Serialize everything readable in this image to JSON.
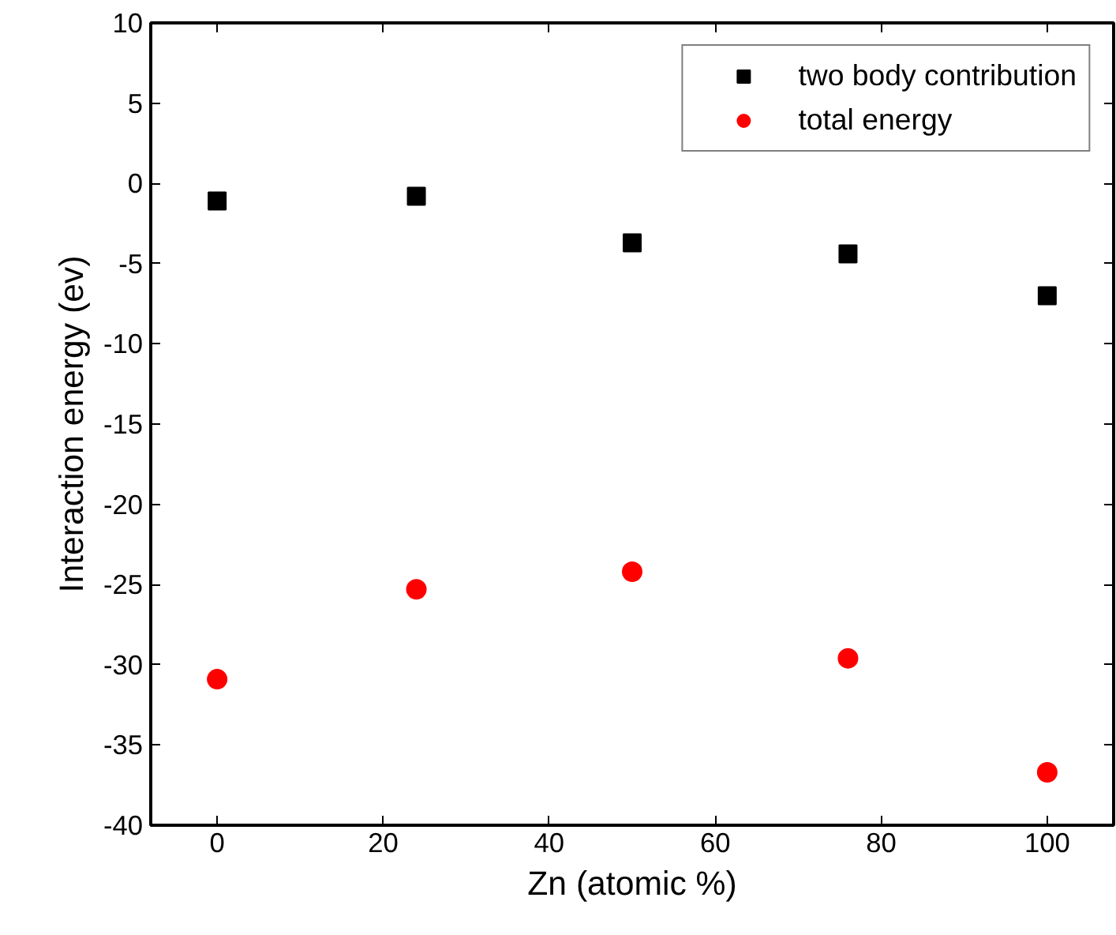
{
  "chart_data": {
    "type": "scatter",
    "xlabel": "Zn (atomic %)",
    "ylabel": "Interaction energy (ev)",
    "x": [
      0,
      24,
      50,
      76,
      100
    ],
    "series": [
      {
        "name": "two body contribution",
        "color": "#000000",
        "marker": "square",
        "values": [
          -1.1,
          -0.8,
          -3.7,
          -4.4,
          -7.0
        ]
      },
      {
        "name": "total energy",
        "color": "#ff0000",
        "marker": "circle",
        "values": [
          -30.9,
          -25.3,
          -24.2,
          -29.6,
          -36.7
        ]
      }
    ],
    "xlim": [
      -8,
      108
    ],
    "ylim": [
      -40,
      10
    ],
    "xticks": [
      0,
      20,
      40,
      60,
      80,
      100
    ],
    "yticks": [
      -40,
      -35,
      -30,
      -25,
      -20,
      -15,
      -10,
      -5,
      0,
      5,
      10
    ],
    "grid": false,
    "legend": "top right"
  }
}
